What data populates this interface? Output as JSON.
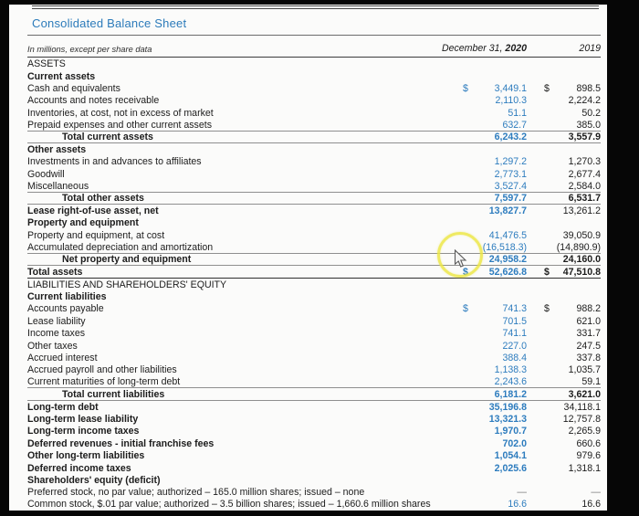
{
  "document": {
    "title": "Consolidated Balance Sheet",
    "unit_note": "In millions, except per share data",
    "columns": {
      "date_prefix": "December 31, ",
      "year_current": "2020",
      "year_prior": "2019"
    }
  },
  "colors": {
    "title_blue": "#2c7bba",
    "value_blue": "#2d7cbe",
    "highlight_yellow": "#ece64a"
  },
  "table": {
    "rows": [
      {
        "label": "ASSETS",
        "v2020": "",
        "v2019": "",
        "cls": "section"
      },
      {
        "label": "Current assets",
        "v2020": "",
        "v2019": "",
        "cls": "group"
      },
      {
        "label": "Cash and equivalents",
        "v2020": "3,449.1",
        "v2019": "898.5",
        "cls": "item",
        "usd": true
      },
      {
        "label": "Accounts and notes receivable",
        "v2020": "2,110.3",
        "v2019": "2,224.2",
        "cls": "item"
      },
      {
        "label": "Inventories, at cost, not in excess of market",
        "v2020": "51.1",
        "v2019": "50.2",
        "cls": "item"
      },
      {
        "label": "Prepaid expenses and other current assets",
        "v2020": "632.7",
        "v2019": "385.0",
        "cls": "item",
        "rule": "thin"
      },
      {
        "label": "Total current assets",
        "v2020": "6,243.2",
        "v2019": "3,557.9",
        "cls": "total",
        "rule": "thin"
      },
      {
        "label": "Other assets",
        "v2020": "",
        "v2019": "",
        "cls": "group"
      },
      {
        "label": "Investments in and advances to affiliates",
        "v2020": "1,297.2",
        "v2019": "1,270.3",
        "cls": "item"
      },
      {
        "label": "Goodwill",
        "v2020": "2,773.1",
        "v2019": "2,677.4",
        "cls": "item"
      },
      {
        "label": "Miscellaneous",
        "v2020": "3,527.4",
        "v2019": "2,584.0",
        "cls": "item",
        "rule": "thin"
      },
      {
        "label": "Total other assets",
        "v2020": "7,597.7",
        "v2019": "6,531.7",
        "cls": "total",
        "rule": "thin"
      },
      {
        "label": "Lease right-of-use asset, net",
        "v2020": "13,827.7",
        "v2019": "13,261.2",
        "cls": "bolditem"
      },
      {
        "label": "Property and equipment",
        "v2020": "",
        "v2019": "",
        "cls": "group"
      },
      {
        "label": "Property and equipment, at cost",
        "v2020": "41,476.5",
        "v2019": "39,050.9",
        "cls": "item"
      },
      {
        "label": "Accumulated depreciation and amortization",
        "v2020": "(16,518.3)",
        "v2019": "(14,890.9)",
        "cls": "item",
        "rule": "thin"
      },
      {
        "label": "Net property and equipment",
        "v2020": "24,958.2",
        "v2019": "24,160.0",
        "cls": "total",
        "rule": "thin"
      },
      {
        "label": "Total assets",
        "v2020": "52,626.8",
        "v2019": "47,510.8",
        "cls": "grandtotal",
        "usd": true,
        "rule": "dark"
      },
      {
        "label": "LIABILITIES AND SHAREHOLDERS' EQUITY",
        "v2020": "",
        "v2019": "",
        "cls": "section"
      },
      {
        "label": "Current liabilities",
        "v2020": "",
        "v2019": "",
        "cls": "group"
      },
      {
        "label": "Accounts payable",
        "v2020": "741.3",
        "v2019": "988.2",
        "cls": "item",
        "usd": true
      },
      {
        "label": "Lease liability",
        "v2020": "701.5",
        "v2019": "621.0",
        "cls": "item"
      },
      {
        "label": "Income taxes",
        "v2020": "741.1",
        "v2019": "331.7",
        "cls": "item"
      },
      {
        "label": "Other taxes",
        "v2020": "227.0",
        "v2019": "247.5",
        "cls": "item"
      },
      {
        "label": "Accrued interest",
        "v2020": "388.4",
        "v2019": "337.8",
        "cls": "item"
      },
      {
        "label": "Accrued payroll and other liabilities",
        "v2020": "1,138.3",
        "v2019": "1,035.7",
        "cls": "item"
      },
      {
        "label": "Current maturities of long-term debt",
        "v2020": "2,243.6",
        "v2019": "59.1",
        "cls": "item",
        "rule": "thin"
      },
      {
        "label": "Total current liabilities",
        "v2020": "6,181.2",
        "v2019": "3,621.0",
        "cls": "total",
        "rule": "thin"
      },
      {
        "label": "Long-term debt",
        "v2020": "35,196.8",
        "v2019": "34,118.1",
        "cls": "bolditem"
      },
      {
        "label": "Long-term lease liability",
        "v2020": "13,321.3",
        "v2019": "12,757.8",
        "cls": "bolditem"
      },
      {
        "label": "Long-term income taxes",
        "v2020": "1,970.7",
        "v2019": "2,265.9",
        "cls": "bolditem"
      },
      {
        "label": "Deferred revenues - initial franchise fees",
        "v2020": "702.0",
        "v2019": "660.6",
        "cls": "bolditem"
      },
      {
        "label": "Other long-term liabilities",
        "v2020": "1,054.1",
        "v2019": "979.6",
        "cls": "bolditem"
      },
      {
        "label": "Deferred income taxes",
        "v2020": "2,025.6",
        "v2019": "1,318.1",
        "cls": "bolditem"
      },
      {
        "label": "Shareholders' equity (deficit)",
        "v2020": "",
        "v2019": "",
        "cls": "group"
      },
      {
        "label": "Preferred stock, no par value; authorized – 165.0 million shares; issued – none",
        "v2020": "—",
        "v2019": "—",
        "cls": "item dash"
      },
      {
        "label": "Common stock, $.01 par value; authorized – 3.5 billion shares; issued – 1,660.6 million shares",
        "v2020": "16.6",
        "v2019": "16.6",
        "cls": "item",
        "rule": "thin"
      }
    ]
  }
}
